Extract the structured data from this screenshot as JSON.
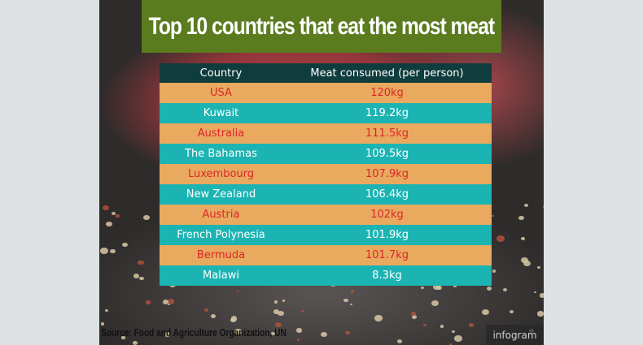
{
  "header": {
    "title": "Top 10 countries that eat the most meat"
  },
  "table": {
    "columns": [
      "Country",
      "Meat consumed (per person)"
    ],
    "rows": [
      [
        "USA",
        "120kg"
      ],
      [
        "Kuwait",
        "119.2kg"
      ],
      [
        "Australia",
        "111.5kg"
      ],
      [
        "The Bahamas",
        "109.5kg"
      ],
      [
        "Luxembourg",
        "107.9kg"
      ],
      [
        "New Zealand",
        "106.4kg"
      ],
      [
        "Austria",
        "102kg"
      ],
      [
        "French Polynesia",
        "101.9kg"
      ],
      [
        "Bermuda",
        "101.7kg"
      ],
      [
        "Malawi",
        "8.3kg"
      ]
    ]
  },
  "footer": {
    "source": "Source: Food and Agriculture Organization, UN",
    "brand": "infogram"
  }
}
